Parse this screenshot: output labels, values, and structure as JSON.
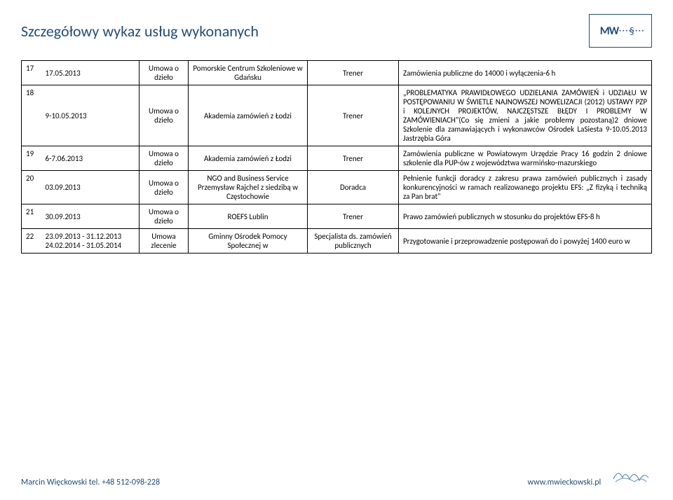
{
  "title": "Szczegółowy wykaz usług wykonanych",
  "logo": {
    "text": "MW",
    "symbol": "§"
  },
  "columns": {
    "contract_label_umowa_dzielo": "Umowa o dzieło",
    "contract_label_umowa_zlecenie": "Umowa zlecenie"
  },
  "rows": [
    {
      "num": "17",
      "date": "17.05.2013",
      "contract": "Umowa o dzieło",
      "entity": "Pomorskie Centrum Szkoleniowe w Gdańsku",
      "role": "Trener",
      "desc": "Zamówienia publiczne do 14000 i wyłączenia-6 h"
    },
    {
      "num": "18",
      "date": "9-10.05.2013",
      "contract": "Umowa o dzieło",
      "entity": "Akademia zamówień z Łodzi",
      "role": "Trener",
      "desc": "„PROBLEMATYKA PRAWIDŁOWEGO UDZIELANIA ZAMÓWIEŃ i UDZIAŁU W POSTĘPOWANIU W ŚWIETLE NAJNOWSZEJ NOWELIZACJI (2012) USTAWY PZP i KOLEJNYCH PROJEKTÓW, NAJCZĘSTSZE BŁĘDY I PROBLEMY W ZAMÓWIENIACH\"(Co się zmieni a jakie problemy pozostaną)2 dniowe Szkolenie dla zamawiających i wykonawców Ośrodek LaSiesta 9-10.05.2013 Jastrzębia Góra"
    },
    {
      "num": "19",
      "date": "6-7.06.2013",
      "contract": "Umowa o dzieło",
      "entity": "Akademia zamówień z Łodzi",
      "role": "Trener",
      "desc": "Zamówienia publiczne w Powiatowym Urzędzie Pracy 16 godzin 2 dniowe szkolenie dla PUP-ów z województwa warmińsko-mazurskiego"
    },
    {
      "num": "20",
      "date": "03.09.2013",
      "contract": "Umowa o dzieło",
      "entity": "NGO and Business Service Przemysław Rajchel z siedzibą w Częstochowie",
      "role": "Doradca",
      "desc": "Pełnienie funkcji doradcy z zakresu prawa zamówień publicznych i zasady konkurencyjności w ramach realizowanego projektu EFS: „Z fizyką i techniką za Pan brat\""
    },
    {
      "num": "21",
      "date": "30.09.2013",
      "contract": "Umowa o dzieło",
      "entity": "ROEFS Lublin",
      "role": "Trener",
      "desc": "Prawo zamówień publicznych w stosunku do projektów EFS-8 h"
    },
    {
      "num": "22",
      "date": "23.09.2013 - 31.12.2013 24.02.2014 - 31.05.2014",
      "contract": "Umowa zlecenie",
      "entity": "Gminny Ośrodek Pomocy Społecznej w",
      "role": "Specjalista ds. zamówień publicznych",
      "desc": "Przygotowanie i przeprowadzenie postępowań do i powyżej 1400 euro w"
    }
  ],
  "footer": {
    "left": "Marcin Więckowski tel. +48 512-098-228",
    "right": "www.mwieckowski.pl"
  },
  "colors": {
    "title": "#1f4e79",
    "border": "#000000",
    "text": "#000000",
    "footer": "#1f4e79",
    "background": "#ffffff"
  },
  "fonts": {
    "title_size": 22,
    "body_size": 11,
    "footer_size": 12
  }
}
